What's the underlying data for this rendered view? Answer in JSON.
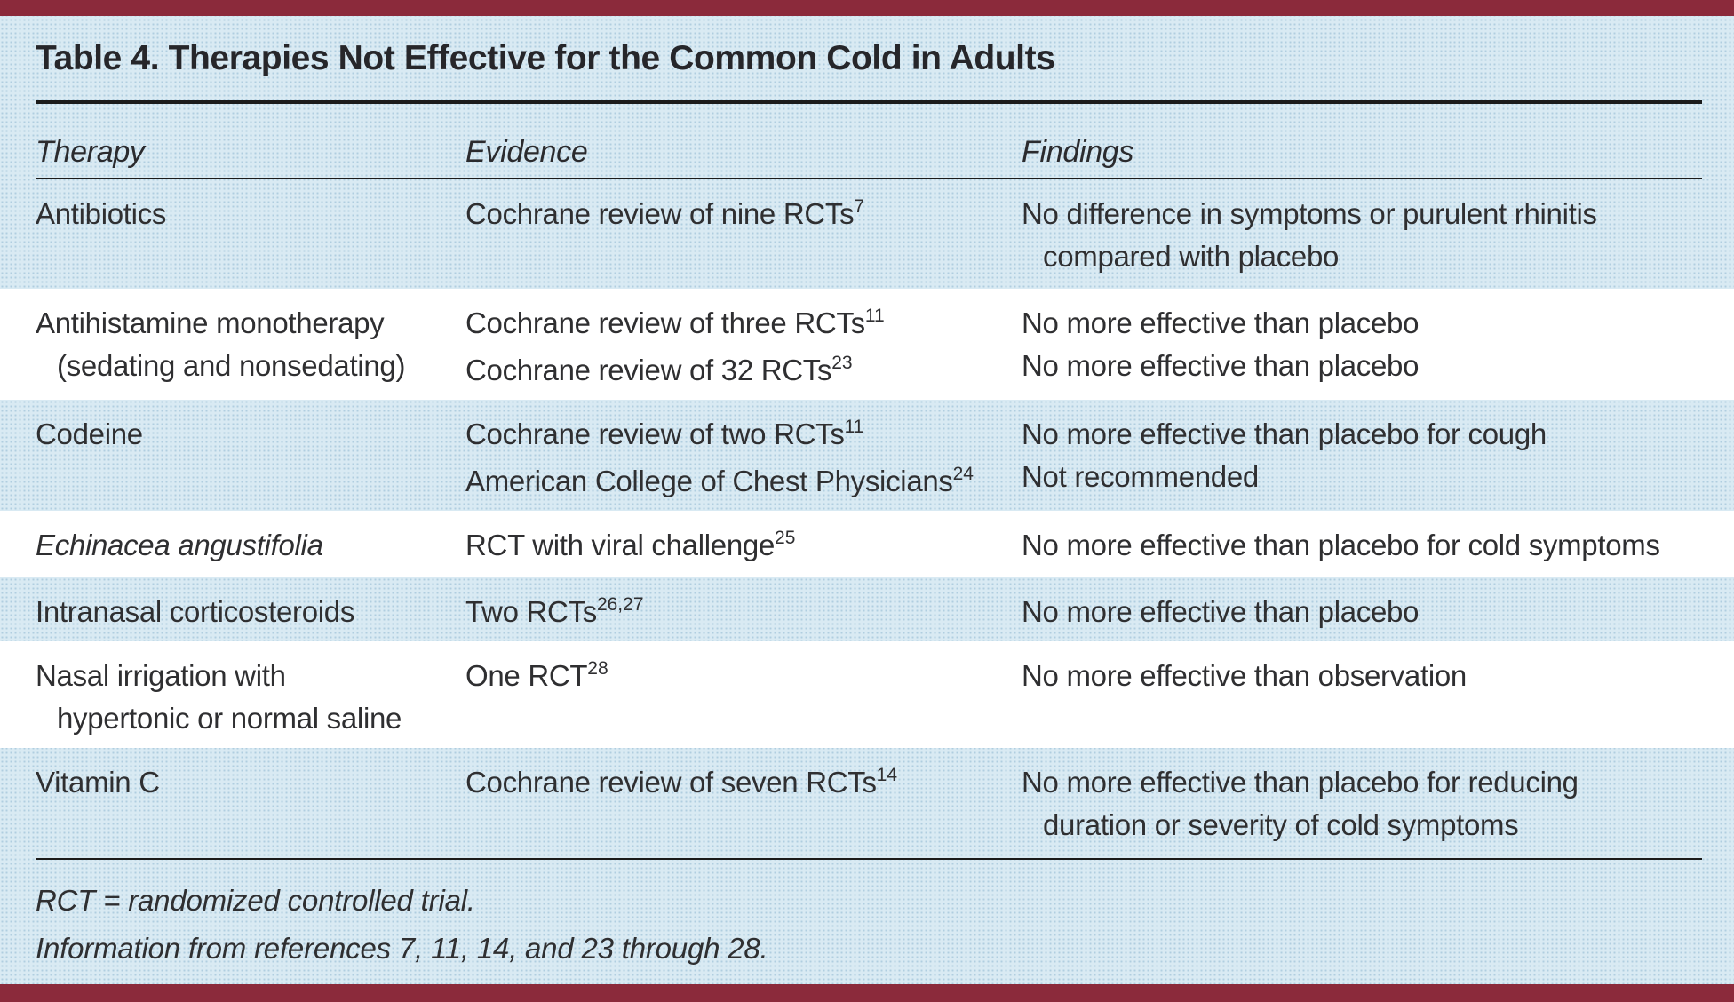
{
  "page": {
    "title": "Table 4. Therapies Not Effective for the Common Cold in Adults",
    "colors": {
      "accent_bar": "#8B2A3B",
      "background_blue": "#D9EAF3",
      "row_white": "#FFFFFF",
      "rule": "#1B1B1B",
      "text": "#2F2F31"
    }
  },
  "table": {
    "columns": [
      {
        "key": "therapy",
        "label": "Therapy"
      },
      {
        "key": "evidence",
        "label": "Evidence"
      },
      {
        "key": "findings",
        "label": "Findings"
      }
    ],
    "rows": [
      {
        "shade": "blue",
        "therapy": {
          "lines": [
            {
              "text": "Antibiotics"
            }
          ]
        },
        "evidence": {
          "lines": [
            {
              "text": "Cochrane review of nine RCTs",
              "sup": "7"
            }
          ]
        },
        "findings": {
          "lines": [
            {
              "text": "No difference in symptoms or purulent rhinitis"
            },
            {
              "text": "compared with placebo",
              "indent": true
            }
          ]
        }
      },
      {
        "shade": "white",
        "therapy": {
          "lines": [
            {
              "text": "Antihistamine monotherapy"
            },
            {
              "text": "(sedating and nonsedating)",
              "indent": true
            }
          ]
        },
        "evidence": {
          "lines": [
            {
              "text": "Cochrane review of three RCTs",
              "sup": "11"
            },
            {
              "text": "Cochrane review of 32 RCTs",
              "sup": "23"
            }
          ]
        },
        "findings": {
          "lines": [
            {
              "text": "No more effective than placebo"
            },
            {
              "text": "No more effective than placebo"
            }
          ]
        }
      },
      {
        "shade": "blue",
        "therapy": {
          "lines": [
            {
              "text": "Codeine"
            }
          ]
        },
        "evidence": {
          "lines": [
            {
              "text": "Cochrane review of two RCTs",
              "sup": "11"
            },
            {
              "text": "American College of Chest Physicians",
              "sup": "24"
            }
          ]
        },
        "findings": {
          "lines": [
            {
              "text": "No more effective than placebo for cough"
            },
            {
              "text": "Not recommended"
            }
          ]
        }
      },
      {
        "shade": "white",
        "therapy": {
          "lines": [
            {
              "text": "Echinacea angustifolia",
              "italic": true
            }
          ]
        },
        "evidence": {
          "lines": [
            {
              "text": "RCT with viral challenge",
              "sup": "25"
            }
          ]
        },
        "findings": {
          "lines": [
            {
              "text": "No more effective than placebo for cold symptoms"
            }
          ]
        }
      },
      {
        "shade": "blue",
        "therapy": {
          "lines": [
            {
              "text": "Intranasal corticosteroids"
            }
          ]
        },
        "evidence": {
          "lines": [
            {
              "text": "Two RCTs",
              "sup": "26,27"
            }
          ]
        },
        "findings": {
          "lines": [
            {
              "text": "No more effective than placebo"
            }
          ]
        }
      },
      {
        "shade": "white",
        "therapy": {
          "lines": [
            {
              "text": "Nasal irrigation with"
            },
            {
              "text": "hypertonic or normal saline",
              "indent": true
            }
          ]
        },
        "evidence": {
          "lines": [
            {
              "text": "One RCT",
              "sup": "28"
            }
          ]
        },
        "findings": {
          "lines": [
            {
              "text": "No more effective than observation"
            }
          ]
        }
      },
      {
        "shade": "blue",
        "therapy": {
          "lines": [
            {
              "text": "Vitamin C"
            }
          ]
        },
        "evidence": {
          "lines": [
            {
              "text": "Cochrane review of seven RCTs",
              "sup": "14"
            }
          ]
        },
        "findings": {
          "lines": [
            {
              "text": "No more effective than placebo for reducing"
            },
            {
              "text": "duration or severity of cold symptoms",
              "indent": true
            }
          ]
        }
      }
    ]
  },
  "footnotes": [
    "RCT = randomized controlled trial.",
    "Information from references 7, 11, 14, and 23 through 28."
  ]
}
